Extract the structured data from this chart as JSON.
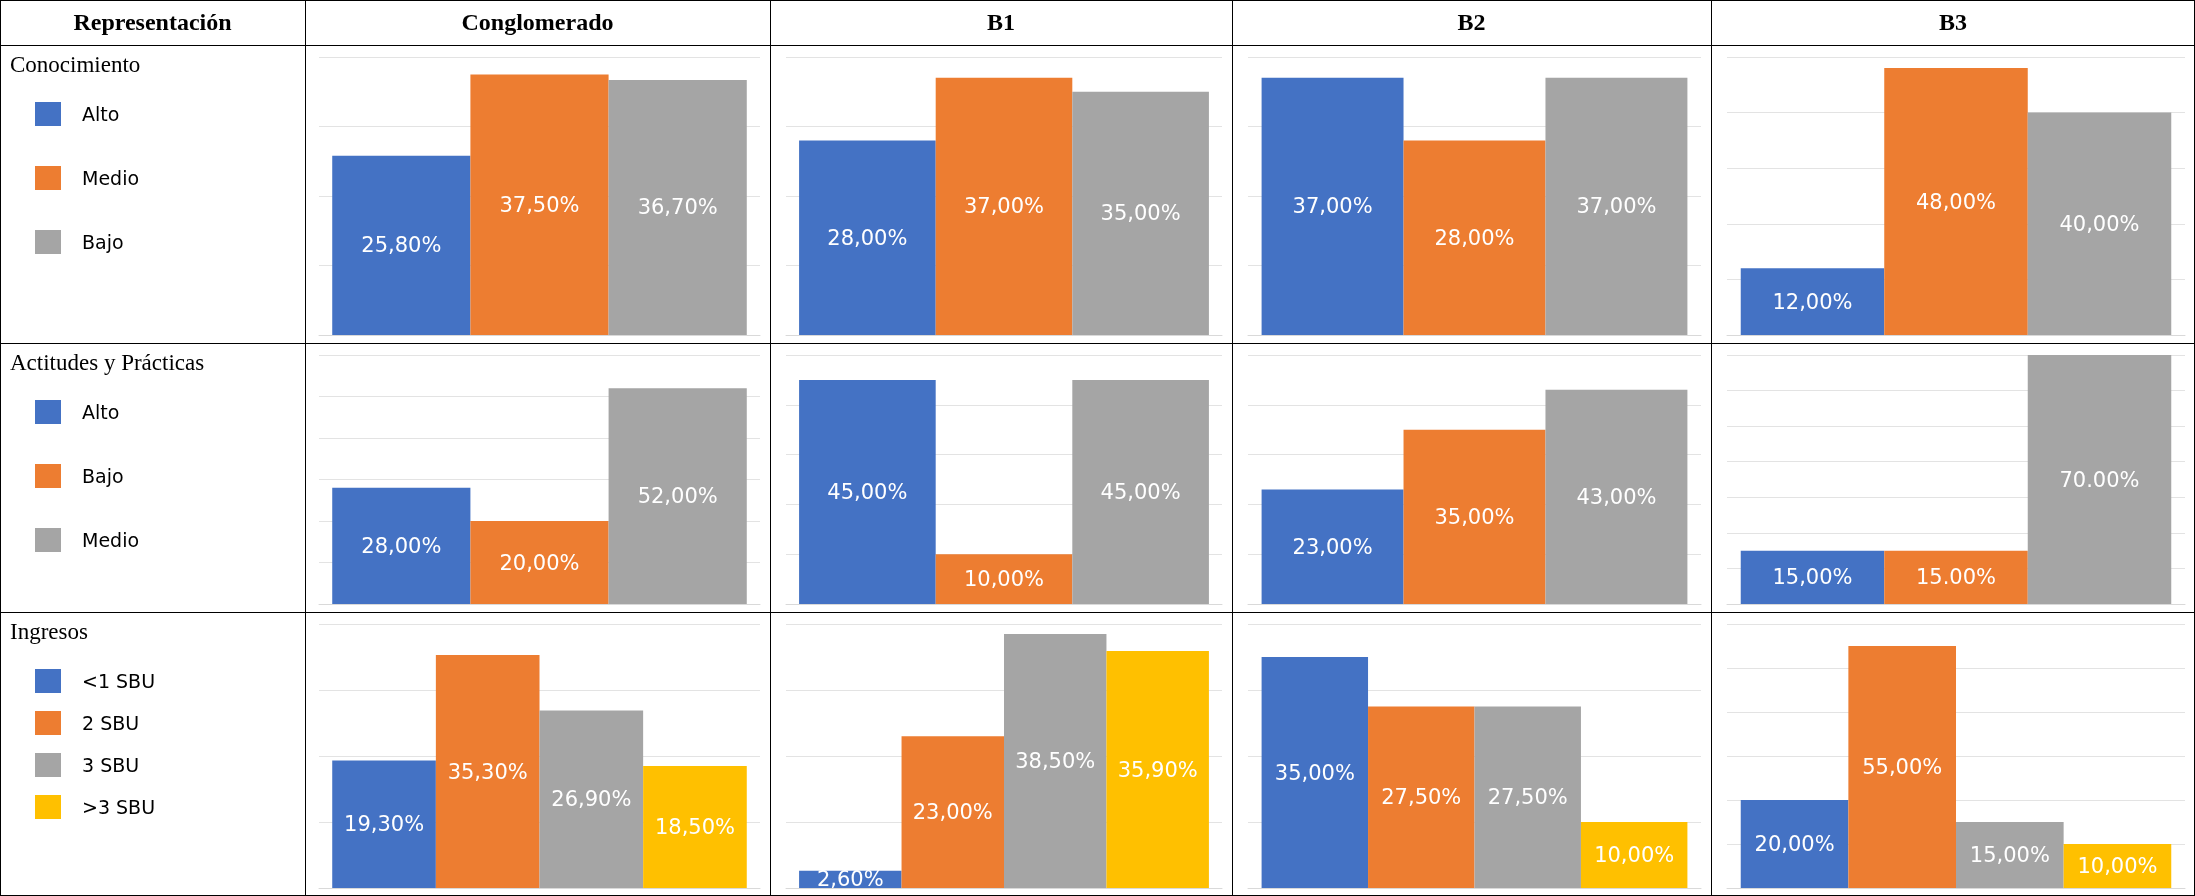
{
  "chart_data": [
    {
      "type": "other",
      "annotations": [
        "Representación",
        "Conglomerado",
        "B1",
        "B2",
        "B3"
      ]
    },
    {
      "type": "other",
      "title": "Conocimiento"
    },
    {
      "type": "bar",
      "categories": [
        null
      ],
      "legend": "left",
      "grid": "y",
      "tick_labels": false,
      "series": [
        {
          "name": "Alto",
          "color": "#4472c4",
          "values": [
            25.8
          ],
          "value_labels": [
            "25,80%"
          ]
        },
        {
          "name": "Medio",
          "color": "#ed7d31",
          "values": [
            37.5
          ],
          "value_labels": [
            "37,50%"
          ]
        },
        {
          "name": "Bajo",
          "color": "#a5a5a5",
          "values": [
            36.7
          ],
          "value_labels": [
            "36,70%"
          ]
        }
      ]
    },
    {
      "type": "bar",
      "categories": [
        null
      ],
      "grid": "y",
      "tick_labels": false,
      "series": [
        {
          "color": "#4472c4",
          "values": [
            28
          ],
          "value_labels": [
            "28,00%"
          ]
        },
        {
          "color": "#ed7d31",
          "values": [
            37
          ],
          "value_labels": [
            "37,00%"
          ]
        },
        {
          "color": "#a5a5a5",
          "values": [
            35
          ],
          "value_labels": [
            "35,00%"
          ]
        }
      ]
    },
    {
      "type": "bar",
      "categories": [
        null
      ],
      "grid": "y",
      "tick_labels": false,
      "series": [
        {
          "color": "#4472c4",
          "values": [
            37
          ],
          "value_labels": [
            "37,00%"
          ]
        },
        {
          "color": "#ed7d31",
          "values": [
            28
          ],
          "value_labels": [
            "28,00%"
          ]
        },
        {
          "color": "#a5a5a5",
          "values": [
            37
          ],
          "value_labels": [
            "37,00%"
          ]
        }
      ]
    },
    {
      "type": "bar",
      "categories": [
        null
      ],
      "grid": "y",
      "tick_labels": false,
      "series": [
        {
          "color": "#4472c4",
          "values": [
            12
          ],
          "value_labels": [
            "12,00%"
          ]
        },
        {
          "color": "#ed7d31",
          "values": [
            48
          ],
          "value_labels": [
            "48,00%"
          ]
        },
        {
          "color": "#a5a5a5",
          "values": [
            40
          ],
          "value_labels": [
            "40,00%"
          ]
        }
      ]
    },
    {
      "type": "other",
      "title": "Actitudes y Prácticas"
    },
    {
      "type": "bar",
      "categories": [
        null
      ],
      "legend": "left",
      "grid": "y",
      "tick_labels": false,
      "series": [
        {
          "name": "Alto",
          "color": "#4472c4",
          "values": [
            28
          ],
          "value_labels": [
            "28,00%"
          ]
        },
        {
          "name": "Bajo",
          "color": "#ed7d31",
          "values": [
            20
          ],
          "value_labels": [
            "20,00%"
          ]
        },
        {
          "name": "Medio",
          "color": "#a5a5a5",
          "values": [
            52
          ],
          "value_labels": [
            "52,00%"
          ]
        }
      ]
    },
    {
      "type": "bar",
      "categories": [
        null
      ],
      "grid": "y",
      "tick_labels": false,
      "series": [
        {
          "color": "#4472c4",
          "values": [
            45
          ],
          "value_labels": [
            "45,00%"
          ]
        },
        {
          "color": "#ed7d31",
          "values": [
            10
          ],
          "value_labels": [
            "10,00%"
          ]
        },
        {
          "color": "#a5a5a5",
          "values": [
            45
          ],
          "value_labels": [
            "45,00%"
          ]
        }
      ]
    },
    {
      "type": "bar",
      "categories": [
        null
      ],
      "grid": "y",
      "tick_labels": false,
      "series": [
        {
          "color": "#4472c4",
          "values": [
            23
          ],
          "value_labels": [
            "23,00%"
          ]
        },
        {
          "color": "#ed7d31",
          "values": [
            35
          ],
          "value_labels": [
            "35,00%"
          ]
        },
        {
          "color": "#a5a5a5",
          "values": [
            43
          ],
          "value_labels": [
            "43,00%"
          ]
        }
      ]
    },
    {
      "type": "bar",
      "categories": [
        null
      ],
      "grid": "y",
      "tick_labels": false,
      "series": [
        {
          "color": "#4472c4",
          "values": [
            15
          ],
          "value_labels": [
            "15,00%"
          ]
        },
        {
          "color": "#ed7d31",
          "values": [
            15
          ],
          "value_labels": [
            "15.00%"
          ]
        },
        {
          "color": "#a5a5a5",
          "values": [
            70
          ],
          "value_labels": [
            "70.00%"
          ]
        }
      ]
    },
    {
      "type": "other",
      "title": "Ingresos"
    },
    {
      "type": "bar",
      "categories": [
        null
      ],
      "legend": "left",
      "grid": "y",
      "tick_labels": false,
      "series": [
        {
          "name": "<1 SBU",
          "color": "#4472c4",
          "values": [
            19.3
          ],
          "value_labels": [
            "19,30%"
          ]
        },
        {
          "name": "2 SBU",
          "color": "#ed7d31",
          "values": [
            35.3
          ],
          "value_labels": [
            "35,30%"
          ]
        },
        {
          "name": "3 SBU",
          "color": "#a5a5a5",
          "values": [
            26.9
          ],
          "value_labels": [
            "26,90%"
          ]
        },
        {
          "name": ">3 SBU",
          "color": "#ffc000",
          "values": [
            18.5
          ],
          "value_labels": [
            "18,50%"
          ]
        }
      ]
    },
    {
      "type": "bar",
      "categories": [
        null
      ],
      "grid": "y",
      "tick_labels": false,
      "series": [
        {
          "color": "#4472c4",
          "values": [
            2.6
          ],
          "value_labels": [
            "2,60%"
          ]
        },
        {
          "color": "#ed7d31",
          "values": [
            23
          ],
          "value_labels": [
            "23,00%"
          ]
        },
        {
          "color": "#a5a5a5",
          "values": [
            38.5
          ],
          "value_labels": [
            "38,50%"
          ]
        },
        {
          "color": "#ffc000",
          "values": [
            35.9
          ],
          "value_labels": [
            "35,90%"
          ]
        }
      ]
    },
    {
      "type": "bar",
      "categories": [
        null
      ],
      "grid": "y",
      "tick_labels": false,
      "series": [
        {
          "color": "#4472c4",
          "values": [
            35
          ],
          "value_labels": [
            "35,00%"
          ]
        },
        {
          "color": "#ed7d31",
          "values": [
            27.5
          ],
          "value_labels": [
            "27,50%"
          ]
        },
        {
          "color": "#a5a5a5",
          "values": [
            27.5
          ],
          "value_labels": [
            "27,50%"
          ]
        },
        {
          "color": "#ffc000",
          "values": [
            10
          ],
          "value_labels": [
            "10,00%"
          ]
        }
      ]
    },
    {
      "type": "bar",
      "categories": [
        null
      ],
      "grid": "y",
      "tick_labels": false,
      "series": [
        {
          "color": "#4472c4",
          "values": [
            20
          ],
          "value_labels": [
            "20,00%"
          ]
        },
        {
          "color": "#ed7d31",
          "values": [
            55
          ],
          "value_labels": [
            "55,00%"
          ]
        },
        {
          "color": "#a5a5a5",
          "values": [
            15
          ],
          "value_labels": [
            "15,00%"
          ]
        },
        {
          "color": "#ffc000",
          "values": [
            10
          ],
          "value_labels": [
            "10,00%"
          ]
        }
      ]
    }
  ]
}
